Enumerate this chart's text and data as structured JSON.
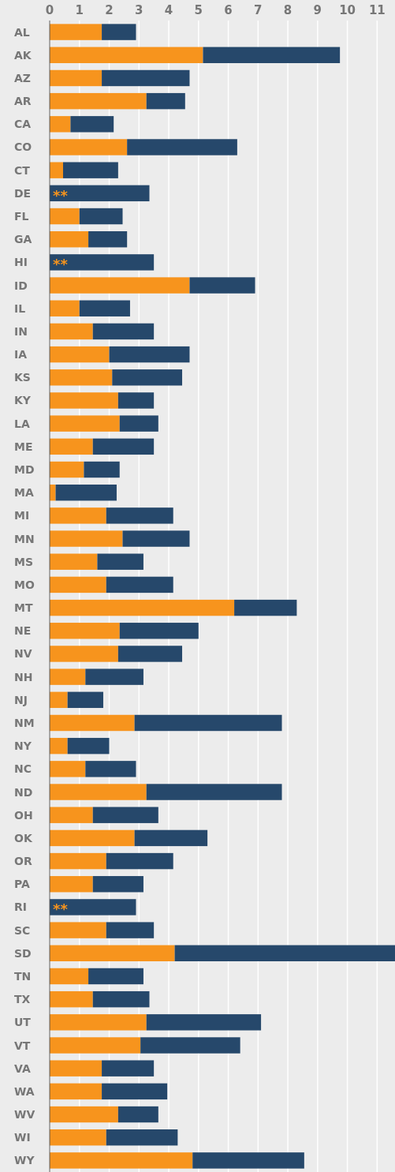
{
  "chart_data": {
    "type": "bar",
    "orientation": "horizontal",
    "stacked": true,
    "grid": "x",
    "categories": [
      "AL",
      "AK",
      "AZ",
      "AR",
      "CA",
      "CO",
      "CT",
      "DE",
      "FL",
      "GA",
      "HI",
      "ID",
      "IL",
      "IN",
      "IA",
      "KS",
      "KY",
      "LA",
      "ME",
      "MD",
      "MA",
      "MI",
      "MN",
      "MS",
      "MO",
      "MT",
      "NE",
      "NV",
      "NH",
      "NJ",
      "NM",
      "NY",
      "NC",
      "ND",
      "OH",
      "OK",
      "OR",
      "PA",
      "RI",
      "SC",
      "SD",
      "TN",
      "TX",
      "UT",
      "VT",
      "VA",
      "WA",
      "WV",
      "WI",
      "WY"
    ],
    "series": [
      {
        "color": "#f7941d",
        "values": [
          1.75,
          5.15,
          1.75,
          3.25,
          0.7,
          2.6,
          0.45,
          null,
          1.0,
          1.3,
          null,
          4.7,
          1.0,
          1.45,
          2.0,
          2.1,
          2.3,
          2.35,
          1.45,
          1.15,
          0.2,
          1.9,
          2.45,
          1.6,
          1.9,
          6.2,
          2.35,
          2.3,
          1.2,
          0.6,
          2.85,
          0.6,
          1.2,
          3.25,
          1.45,
          2.85,
          1.9,
          1.45,
          null,
          1.9,
          4.2,
          1.3,
          1.45,
          3.25,
          3.05,
          1.75,
          1.75,
          2.3,
          1.9,
          4.8
        ],
        "value_labels": [
          null,
          null,
          null,
          null,
          null,
          null,
          null,
          "**",
          null,
          null,
          "**",
          null,
          null,
          null,
          null,
          null,
          null,
          null,
          null,
          null,
          null,
          null,
          null,
          null,
          null,
          null,
          null,
          null,
          null,
          null,
          null,
          null,
          null,
          null,
          null,
          null,
          null,
          null,
          "**",
          null,
          null,
          null,
          null,
          null,
          null,
          null,
          null,
          null,
          null,
          null
        ]
      },
      {
        "color": "#26486b",
        "values": [
          1.15,
          4.6,
          2.95,
          1.3,
          1.45,
          3.7,
          1.85,
          3.35,
          1.45,
          1.3,
          3.5,
          2.2,
          1.7,
          2.05,
          2.7,
          2.35,
          1.2,
          1.3,
          2.05,
          1.2,
          2.05,
          2.25,
          2.25,
          1.55,
          2.25,
          2.1,
          2.65,
          2.15,
          1.95,
          1.2,
          4.95,
          1.4,
          1.7,
          4.55,
          2.2,
          2.45,
          2.25,
          1.7,
          2.9,
          1.6,
          7.4,
          1.85,
          1.9,
          3.85,
          3.35,
          1.75,
          2.2,
          1.35,
          2.4,
          3.75
        ]
      }
    ],
    "xlim": [
      0,
      11.6
    ],
    "xticks": [
      0,
      1,
      2,
      3,
      4,
      5,
      6,
      7,
      8,
      9,
      10,
      11
    ]
  }
}
